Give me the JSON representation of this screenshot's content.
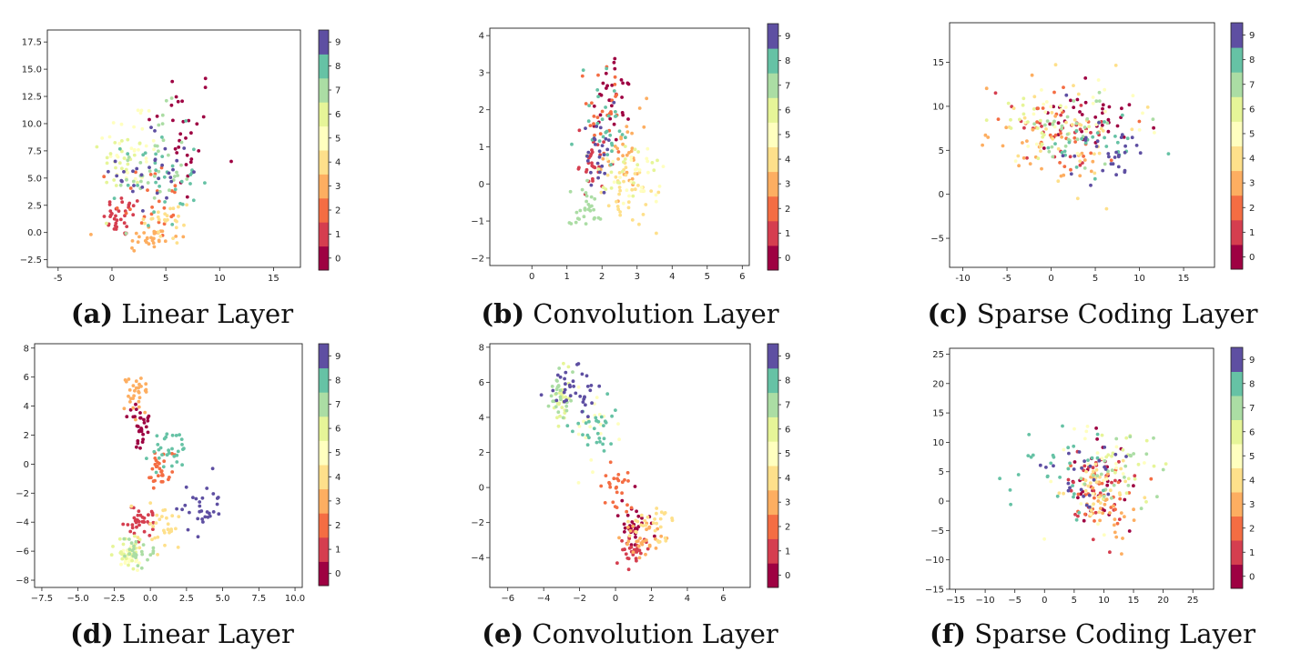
{
  "colorbar": {
    "labels": [
      "0",
      "1",
      "2",
      "3",
      "4",
      "5",
      "6",
      "7",
      "8",
      "9"
    ],
    "colors": [
      "#9e0142",
      "#d53e4f",
      "#f46d43",
      "#fdae61",
      "#fee08b",
      "#ffffbf",
      "#e6f598",
      "#abdda4",
      "#66c2a5",
      "#3288bd",
      "#5e4fa2"
    ]
  },
  "chart_data": [
    {
      "id": "a",
      "type": "scatter",
      "label": "(a)",
      "title": "Linear Layer",
      "xlim": [
        -6,
        17.5
      ],
      "ylim": [
        -3.2,
        18.6
      ],
      "xticks": [
        -5,
        0,
        5,
        10,
        15
      ],
      "yticks": [
        -2.5,
        0.0,
        2.5,
        5.0,
        7.5,
        10.0,
        12.5,
        15.0,
        17.5
      ],
      "ytick_labels": [
        "−2.5",
        "0.0",
        "2.5",
        "5.0",
        "7.5",
        "10.0",
        "12.5",
        "15.0",
        "17.5"
      ],
      "clusters": [
        {
          "class": 0,
          "cx": 6.5,
          "cy": 9.0,
          "sx": 2.2,
          "sy": 4.5,
          "n": 30
        },
        {
          "class": 1,
          "cx": 1.0,
          "cy": 1.5,
          "sx": 1.2,
          "sy": 1.3,
          "n": 35
        },
        {
          "class": 2,
          "cx": 3.5,
          "cy": 3.0,
          "sx": 2.2,
          "sy": 2.5,
          "n": 25
        },
        {
          "class": 3,
          "cx": 3.5,
          "cy": -0.5,
          "sx": 1.8,
          "sy": 0.9,
          "n": 30
        },
        {
          "class": 4,
          "cx": 5.0,
          "cy": 1.0,
          "sx": 1.8,
          "sy": 1.5,
          "n": 25
        },
        {
          "class": 5,
          "cx": 2.0,
          "cy": 8.0,
          "sx": 1.8,
          "sy": 3.0,
          "n": 30
        },
        {
          "class": 6,
          "cx": 1.0,
          "cy": 6.5,
          "sx": 1.3,
          "sy": 1.8,
          "n": 25
        },
        {
          "class": 7,
          "cx": 4.0,
          "cy": 6.0,
          "sx": 2.3,
          "sy": 3.5,
          "n": 35
        },
        {
          "class": 8,
          "cx": 4.5,
          "cy": 5.0,
          "sx": 2.3,
          "sy": 3.0,
          "n": 35
        },
        {
          "class": 9,
          "cx": 4.0,
          "cy": 5.5,
          "sx": 2.3,
          "sy": 3.0,
          "n": 30
        }
      ]
    },
    {
      "id": "b",
      "type": "scatter",
      "label": "(b)",
      "title": "Convolution Layer",
      "xlim": [
        -1.2,
        6.2
      ],
      "ylim": [
        -2.2,
        4.2
      ],
      "xticks": [
        0,
        1,
        2,
        3,
        4,
        5,
        6
      ],
      "yticks": [
        -2,
        -1,
        0,
        1,
        2,
        3,
        4
      ],
      "ytick_labels": [
        "−2",
        "−1",
        "0",
        "1",
        "2",
        "3",
        "4"
      ],
      "clusters": [
        {
          "class": 0,
          "cx": 2.3,
          "cy": 2.5,
          "sx": 0.4,
          "sy": 0.8,
          "n": 30
        },
        {
          "class": 1,
          "cx": 1.7,
          "cy": 0.6,
          "sx": 0.3,
          "sy": 0.5,
          "n": 30
        },
        {
          "class": 2,
          "cx": 2.0,
          "cy": 2.0,
          "sx": 0.4,
          "sy": 1.0,
          "n": 25
        },
        {
          "class": 3,
          "cx": 2.5,
          "cy": 0.5,
          "sx": 0.5,
          "sy": 0.8,
          "n": 30
        },
        {
          "class": 4,
          "cx": 2.8,
          "cy": -0.3,
          "sx": 0.6,
          "sy": 0.6,
          "n": 35
        },
        {
          "class": 5,
          "cx": 2.9,
          "cy": 0.2,
          "sx": 0.7,
          "sy": 0.7,
          "n": 25
        },
        {
          "class": 6,
          "cx": 2.6,
          "cy": 0.3,
          "sx": 0.6,
          "sy": 0.6,
          "n": 20
        },
        {
          "class": 7,
          "cx": 1.6,
          "cy": -0.6,
          "sx": 0.3,
          "sy": 0.5,
          "n": 30
        },
        {
          "class": 8,
          "cx": 2.1,
          "cy": 1.5,
          "sx": 0.4,
          "sy": 0.8,
          "n": 30
        },
        {
          "class": 9,
          "cx": 1.9,
          "cy": 0.8,
          "sx": 0.4,
          "sy": 0.8,
          "n": 25
        }
      ]
    },
    {
      "id": "c",
      "type": "scatter",
      "label": "(c)",
      "title": "Sparse Coding Layer",
      "xlim": [
        -11.5,
        18.5
      ],
      "ylim": [
        -8.3,
        19.5
      ],
      "xticks": [
        -10,
        -5,
        0,
        5,
        10,
        15
      ],
      "yticks": [
        -5,
        0,
        5,
        10,
        15
      ],
      "ytick_labels": [
        "−5",
        "0",
        "5",
        "10",
        "15"
      ],
      "clusters": [
        {
          "class": 0,
          "cx": 3.0,
          "cy": 8.5,
          "sx": 4.0,
          "sy": 2.5,
          "n": 35
        },
        {
          "class": 1,
          "cx": 0.0,
          "cy": 7.5,
          "sx": 4.0,
          "sy": 2.5,
          "n": 30
        },
        {
          "class": 2,
          "cx": 2.0,
          "cy": 7.0,
          "sx": 5.0,
          "sy": 3.5,
          "n": 25
        },
        {
          "class": 3,
          "cx": 0.0,
          "cy": 6.0,
          "sx": 5.0,
          "sy": 3.5,
          "n": 30
        },
        {
          "class": 4,
          "cx": 3.0,
          "cy": 7.0,
          "sx": 5.0,
          "sy": 4.0,
          "n": 35
        },
        {
          "class": 5,
          "cx": 3.0,
          "cy": 8.0,
          "sx": 5.0,
          "sy": 3.5,
          "n": 25
        },
        {
          "class": 6,
          "cx": -2.0,
          "cy": 8.0,
          "sx": 4.0,
          "sy": 3.0,
          "n": 20
        },
        {
          "class": 7,
          "cx": 2.0,
          "cy": 7.0,
          "sx": 4.0,
          "sy": 3.0,
          "n": 30
        },
        {
          "class": 8,
          "cx": 5.0,
          "cy": 6.0,
          "sx": 4.0,
          "sy": 3.0,
          "n": 25
        },
        {
          "class": 9,
          "cx": 6.0,
          "cy": 5.0,
          "sx": 4.0,
          "sy": 3.0,
          "n": 30
        }
      ]
    },
    {
      "id": "d",
      "type": "scatter",
      "label": "(d)",
      "title": "Linear Layer",
      "xlim": [
        -8,
        10.5
      ],
      "ylim": [
        -8.5,
        8.3
      ],
      "xticks": [
        -7.5,
        -5.0,
        -2.5,
        0.0,
        2.5,
        5.0,
        7.5,
        10.0
      ],
      "yticks": [
        -8,
        -6,
        -4,
        -2,
        0,
        2,
        4,
        6,
        8
      ],
      "xtick_labels": [
        "−7.5",
        "−5.0",
        "−2.5",
        "0.0",
        "2.5",
        "5.0",
        "7.5",
        "10.0"
      ],
      "ytick_labels": [
        "−8",
        "−6",
        "−4",
        "−2",
        "0",
        "2",
        "4",
        "6",
        "8"
      ],
      "clusters": [
        {
          "class": 0,
          "cx": -0.6,
          "cy": 2.5,
          "sx": 0.5,
          "sy": 1.2,
          "n": 30
        },
        {
          "class": 1,
          "cx": -0.8,
          "cy": -4.0,
          "sx": 0.7,
          "sy": 0.8,
          "n": 35
        },
        {
          "class": 2,
          "cx": 0.5,
          "cy": -0.5,
          "sx": 0.6,
          "sy": 1.0,
          "n": 30
        },
        {
          "class": 3,
          "cx": -0.9,
          "cy": 5.0,
          "sx": 0.5,
          "sy": 1.2,
          "n": 30
        },
        {
          "class": 4,
          "cx": 0.5,
          "cy": -4.5,
          "sx": 1.0,
          "sy": 1.0,
          "n": 30
        },
        {
          "class": 5,
          "cx": -1.5,
          "cy": -6.3,
          "sx": 0.5,
          "sy": 0.6,
          "n": 25
        },
        {
          "class": 6,
          "cx": -1.5,
          "cy": -6.0,
          "sx": 0.6,
          "sy": 0.8,
          "n": 25
        },
        {
          "class": 7,
          "cx": -0.8,
          "cy": -6.0,
          "sx": 0.8,
          "sy": 0.8,
          "n": 25
        },
        {
          "class": 8,
          "cx": 1.2,
          "cy": 1.0,
          "sx": 0.9,
          "sy": 1.3,
          "n": 30
        },
        {
          "class": 9,
          "cx": 3.5,
          "cy": -3.0,
          "sx": 0.9,
          "sy": 1.2,
          "n": 30
        }
      ]
    },
    {
      "id": "e",
      "type": "scatter",
      "label": "(e)",
      "title": "Convolution Layer",
      "xlim": [
        -7,
        7.5
      ],
      "ylim": [
        -5.7,
        8.2
      ],
      "xticks": [
        -6,
        -4,
        -2,
        0,
        2,
        4,
        6
      ],
      "yticks": [
        -4,
        -2,
        0,
        2,
        4,
        6,
        8
      ],
      "xtick_labels": [
        "−6",
        "−4",
        "−2",
        "0",
        "2",
        "4",
        "6"
      ],
      "ytick_labels": [
        "−4",
        "−2",
        "0",
        "2",
        "4",
        "6",
        "8"
      ],
      "clusters": [
        {
          "class": 0,
          "cx": 1.0,
          "cy": -2.3,
          "sx": 0.6,
          "sy": 0.8,
          "n": 30
        },
        {
          "class": 1,
          "cx": 0.8,
          "cy": -3.5,
          "sx": 0.6,
          "sy": 0.7,
          "n": 30
        },
        {
          "class": 2,
          "cx": 0.0,
          "cy": 0.0,
          "sx": 0.7,
          "sy": 1.0,
          "n": 25
        },
        {
          "class": 3,
          "cx": 1.5,
          "cy": -3.0,
          "sx": 0.9,
          "sy": 0.8,
          "n": 30
        },
        {
          "class": 4,
          "cx": 2.0,
          "cy": -2.3,
          "sx": 0.8,
          "sy": 0.7,
          "n": 30
        },
        {
          "class": 5,
          "cx": -1.5,
          "cy": 3.5,
          "sx": 1.0,
          "sy": 1.5,
          "n": 20
        },
        {
          "class": 6,
          "cx": -3.0,
          "cy": 5.0,
          "sx": 0.4,
          "sy": 0.8,
          "n": 25
        },
        {
          "class": 7,
          "cx": -3.2,
          "cy": 5.2,
          "sx": 0.4,
          "sy": 0.9,
          "n": 25
        },
        {
          "class": 8,
          "cx": -1.0,
          "cy": 3.5,
          "sx": 0.8,
          "sy": 1.0,
          "n": 30
        },
        {
          "class": 9,
          "cx": -2.0,
          "cy": 5.5,
          "sx": 1.0,
          "sy": 1.0,
          "n": 35
        }
      ]
    },
    {
      "id": "f",
      "type": "scatter",
      "label": "(f)",
      "title": "Sparse Coding Layer",
      "xlim": [
        -16,
        28.5
      ],
      "ylim": [
        -15,
        26
      ],
      "xticks": [
        -15,
        -10,
        -5,
        0,
        5,
        10,
        15,
        20,
        25
      ],
      "yticks": [
        -15,
        -10,
        -5,
        0,
        5,
        10,
        15,
        20,
        25
      ],
      "xtick_labels": [
        "−15",
        "−10",
        "−5",
        "0",
        "5",
        "10",
        "15",
        "20",
        "25"
      ],
      "ytick_labels": [
        "−15",
        "−10",
        "−5",
        "0",
        "5",
        "10",
        "15",
        "20",
        "25"
      ],
      "clusters": [
        {
          "class": 0,
          "cx": 10.0,
          "cy": 3.0,
          "sx": 3.5,
          "sy": 5.0,
          "n": 30
        },
        {
          "class": 1,
          "cx": 9.0,
          "cy": 2.0,
          "sx": 3.5,
          "sy": 5.0,
          "n": 30
        },
        {
          "class": 2,
          "cx": 9.0,
          "cy": 0.0,
          "sx": 4.0,
          "sy": 5.0,
          "n": 25
        },
        {
          "class": 3,
          "cx": 10.0,
          "cy": -1.0,
          "sx": 4.0,
          "sy": 5.0,
          "n": 30
        },
        {
          "class": 4,
          "cx": 9.0,
          "cy": 3.0,
          "sx": 4.0,
          "sy": 5.0,
          "n": 30
        },
        {
          "class": 5,
          "cx": 8.0,
          "cy": 5.0,
          "sx": 5.0,
          "sy": 6.0,
          "n": 25
        },
        {
          "class": 6,
          "cx": 13.0,
          "cy": 6.0,
          "sx": 5.0,
          "sy": 5.0,
          "n": 20
        },
        {
          "class": 7,
          "cx": 14.0,
          "cy": 5.0,
          "sx": 5.0,
          "sy": 5.0,
          "n": 25
        },
        {
          "class": 8,
          "cx": 2.0,
          "cy": 5.0,
          "sx": 7.0,
          "sy": 4.0,
          "n": 30
        },
        {
          "class": 9,
          "cx": 6.0,
          "cy": 4.0,
          "sx": 5.0,
          "sy": 4.0,
          "n": 25
        }
      ]
    }
  ]
}
